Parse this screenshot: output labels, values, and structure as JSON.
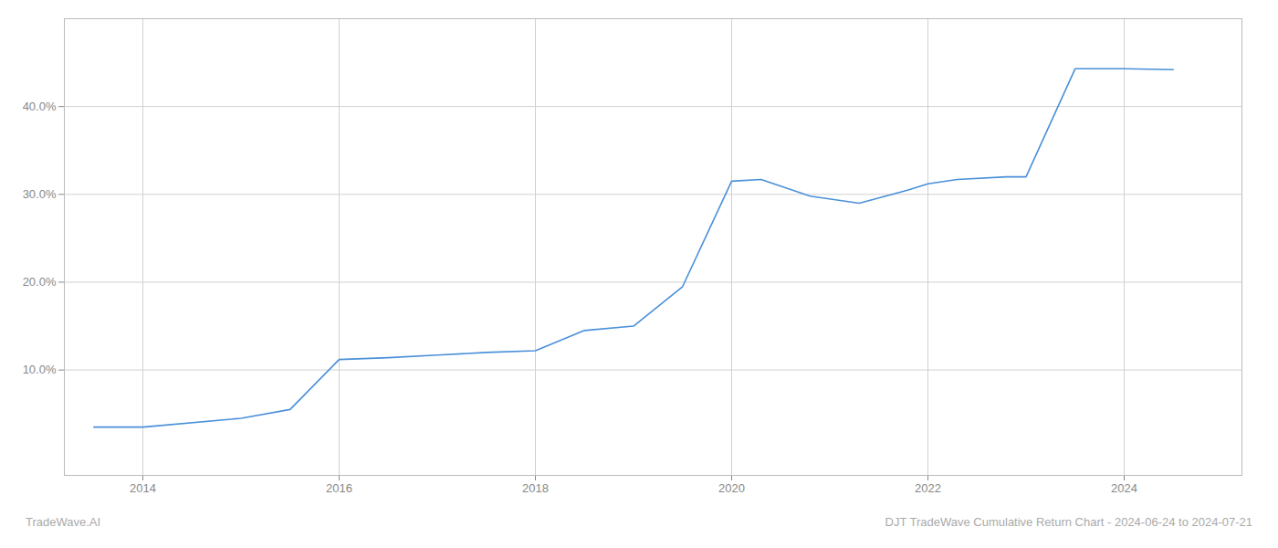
{
  "chart_data": {
    "type": "line",
    "x": [
      2013.5,
      2014.0,
      2015.0,
      2015.5,
      2016.0,
      2016.5,
      2017.0,
      2017.5,
      2018.0,
      2018.5,
      2019.0,
      2019.5,
      2020.0,
      2020.3,
      2020.8,
      2021.3,
      2021.8,
      2022.0,
      2022.3,
      2022.8,
      2023.0,
      2023.5,
      2024.0,
      2024.5
    ],
    "values": [
      3.5,
      3.5,
      4.5,
      5.5,
      11.2,
      11.4,
      11.7,
      12.0,
      12.2,
      14.5,
      15.0,
      19.5,
      31.5,
      31.7,
      29.8,
      29.0,
      30.5,
      31.2,
      31.7,
      32.0,
      32.0,
      44.3,
      44.3,
      44.2
    ],
    "color": "#4a90d9",
    "xlim": [
      2013.2,
      2025.2
    ],
    "ylim": [
      -2,
      50
    ],
    "xticks": [
      2014,
      2016,
      2018,
      2020,
      2022,
      2024
    ],
    "yticks": [
      {
        "value": 10,
        "label": "10.0%"
      },
      {
        "value": 20,
        "label": "20.0%"
      },
      {
        "value": 30,
        "label": "30.0%"
      },
      {
        "value": 40,
        "label": "40.0%"
      }
    ],
    "grid": true,
    "annotations": [
      "TradeWave.AI",
      "DJT TradeWave Cumulative Return Chart - 2024-06-24 to 2024-07-21"
    ]
  }
}
